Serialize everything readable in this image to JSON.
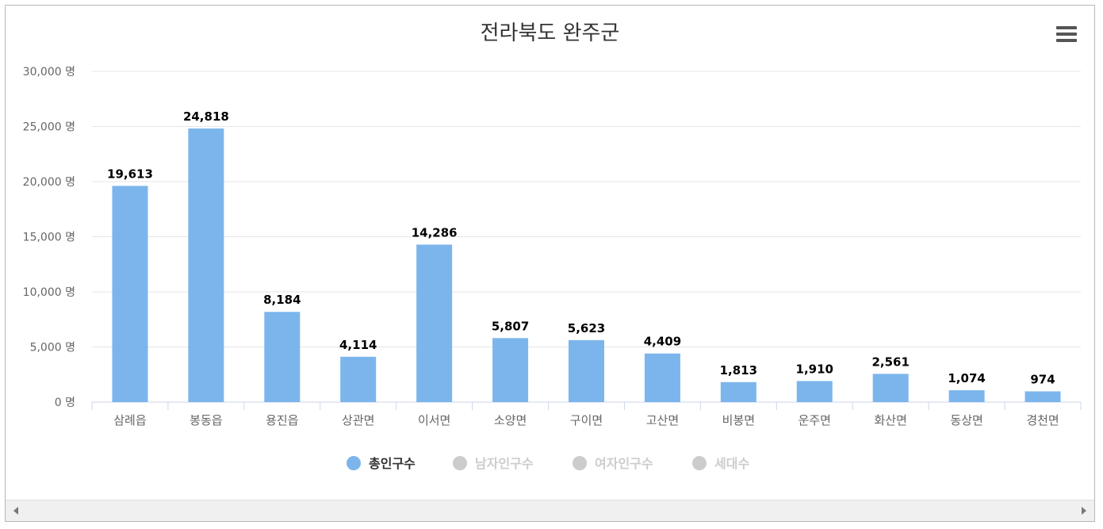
{
  "window": {
    "title": "전라북도 완주군"
  },
  "toolbar": {
    "menu_icon": "hamburger-menu-icon"
  },
  "legend": {
    "items": [
      {
        "label": "총인구수",
        "color": "#7cb5ec",
        "active": true
      },
      {
        "label": "남자인구수",
        "color": "#cccccc",
        "active": false
      },
      {
        "label": "여자인구수",
        "color": "#cccccc",
        "active": false
      },
      {
        "label": "세대수",
        "color": "#cccccc",
        "active": false
      }
    ]
  },
  "chart_data": {
    "type": "bar",
    "title": "전라북도 완주군",
    "xlabel": "",
    "ylabel": "",
    "ylim": [
      0,
      30000
    ],
    "yticks": [
      0,
      5000,
      10000,
      15000,
      20000,
      25000,
      30000
    ],
    "ytick_labels": [
      "0 명",
      "5,000 명",
      "10,000 명",
      "15,000 명",
      "20,000 명",
      "25,000 명",
      "30,000 명"
    ],
    "grid": true,
    "legend_position": "bottom-center",
    "categories": [
      "삼례읍",
      "봉동읍",
      "용진읍",
      "상관면",
      "이서면",
      "소양면",
      "구이면",
      "고산면",
      "비봉면",
      "운주면",
      "화산면",
      "동상면",
      "경천면"
    ],
    "series": [
      {
        "name": "총인구수",
        "color": "#7cb5ec",
        "values": [
          19613,
          24818,
          8184,
          4114,
          14286,
          5807,
          5623,
          4409,
          1813,
          1910,
          2561,
          1074,
          974
        ],
        "labels": [
          "19,613",
          "24,818",
          "8,184",
          "4,114",
          "14,286",
          "5,807",
          "5,623",
          "4,409",
          "1,813",
          "1,910",
          "2,561",
          "1,074",
          "974"
        ]
      }
    ]
  },
  "colors": {
    "grid": "#e6e6e6",
    "axis": "#ccd6eb",
    "tick_text": "#666666",
    "label_text": "#000000"
  }
}
